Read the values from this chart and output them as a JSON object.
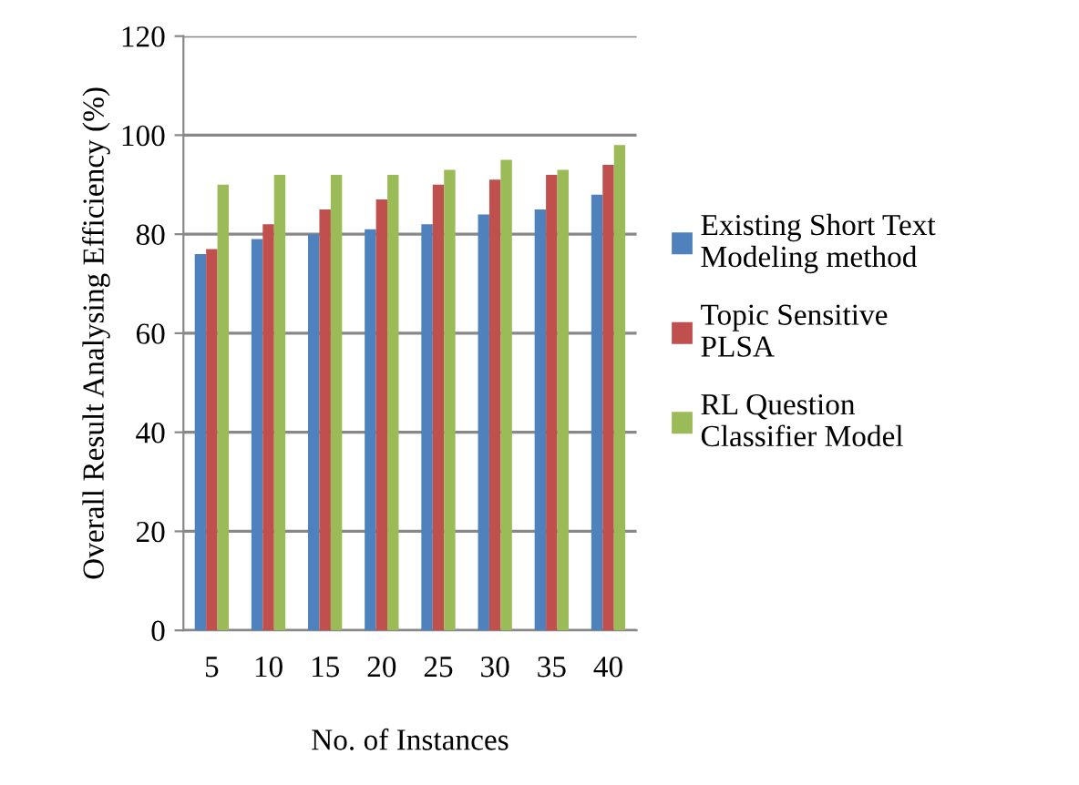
{
  "chart_data": {
    "type": "bar",
    "xlabel": "No. of Instances",
    "ylabel": "Overall Result Analysing Efficiency (%)",
    "categories": [
      "5",
      "10",
      "15",
      "20",
      "25",
      "30",
      "35",
      "40"
    ],
    "series": [
      {
        "name": "Existing Short Text Modeling method",
        "color": "#4f81bd",
        "values": [
          76,
          79,
          80,
          81,
          82,
          84,
          85,
          88
        ]
      },
      {
        "name": "Topic Sensitive PLSA",
        "color": "#c0504d",
        "values": [
          77,
          82,
          85,
          87,
          90,
          91,
          92,
          94
        ]
      },
      {
        "name": "RL Question Classifier Model",
        "color": "#9bbb59",
        "values": [
          90,
          92,
          92,
          92,
          93,
          95,
          93,
          98
        ]
      }
    ],
    "ylim": [
      0,
      120
    ],
    "yticks": [
      0,
      20,
      40,
      60,
      80,
      100,
      120
    ],
    "grid": "y",
    "legend": "right"
  }
}
